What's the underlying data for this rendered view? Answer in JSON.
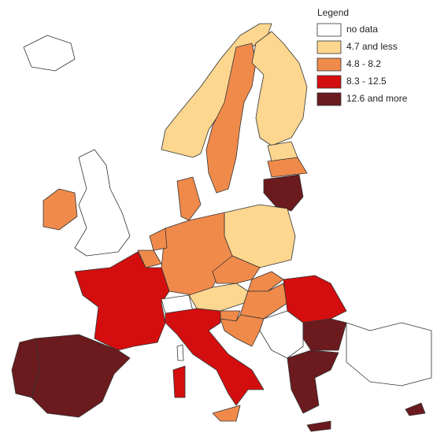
{
  "legend": {
    "title": "Legend",
    "items": [
      {
        "label": "no data",
        "color": "#ffffff"
      },
      {
        "label": "4.7 and less",
        "color": "#fdd68f"
      },
      {
        "label": "4.8 - 8.2",
        "color": "#f08a4b"
      },
      {
        "label": "8.3 - 12.5",
        "color": "#d40e0e"
      },
      {
        "label": "12.6 and more",
        "color": "#6b1a1e"
      }
    ]
  }
}
